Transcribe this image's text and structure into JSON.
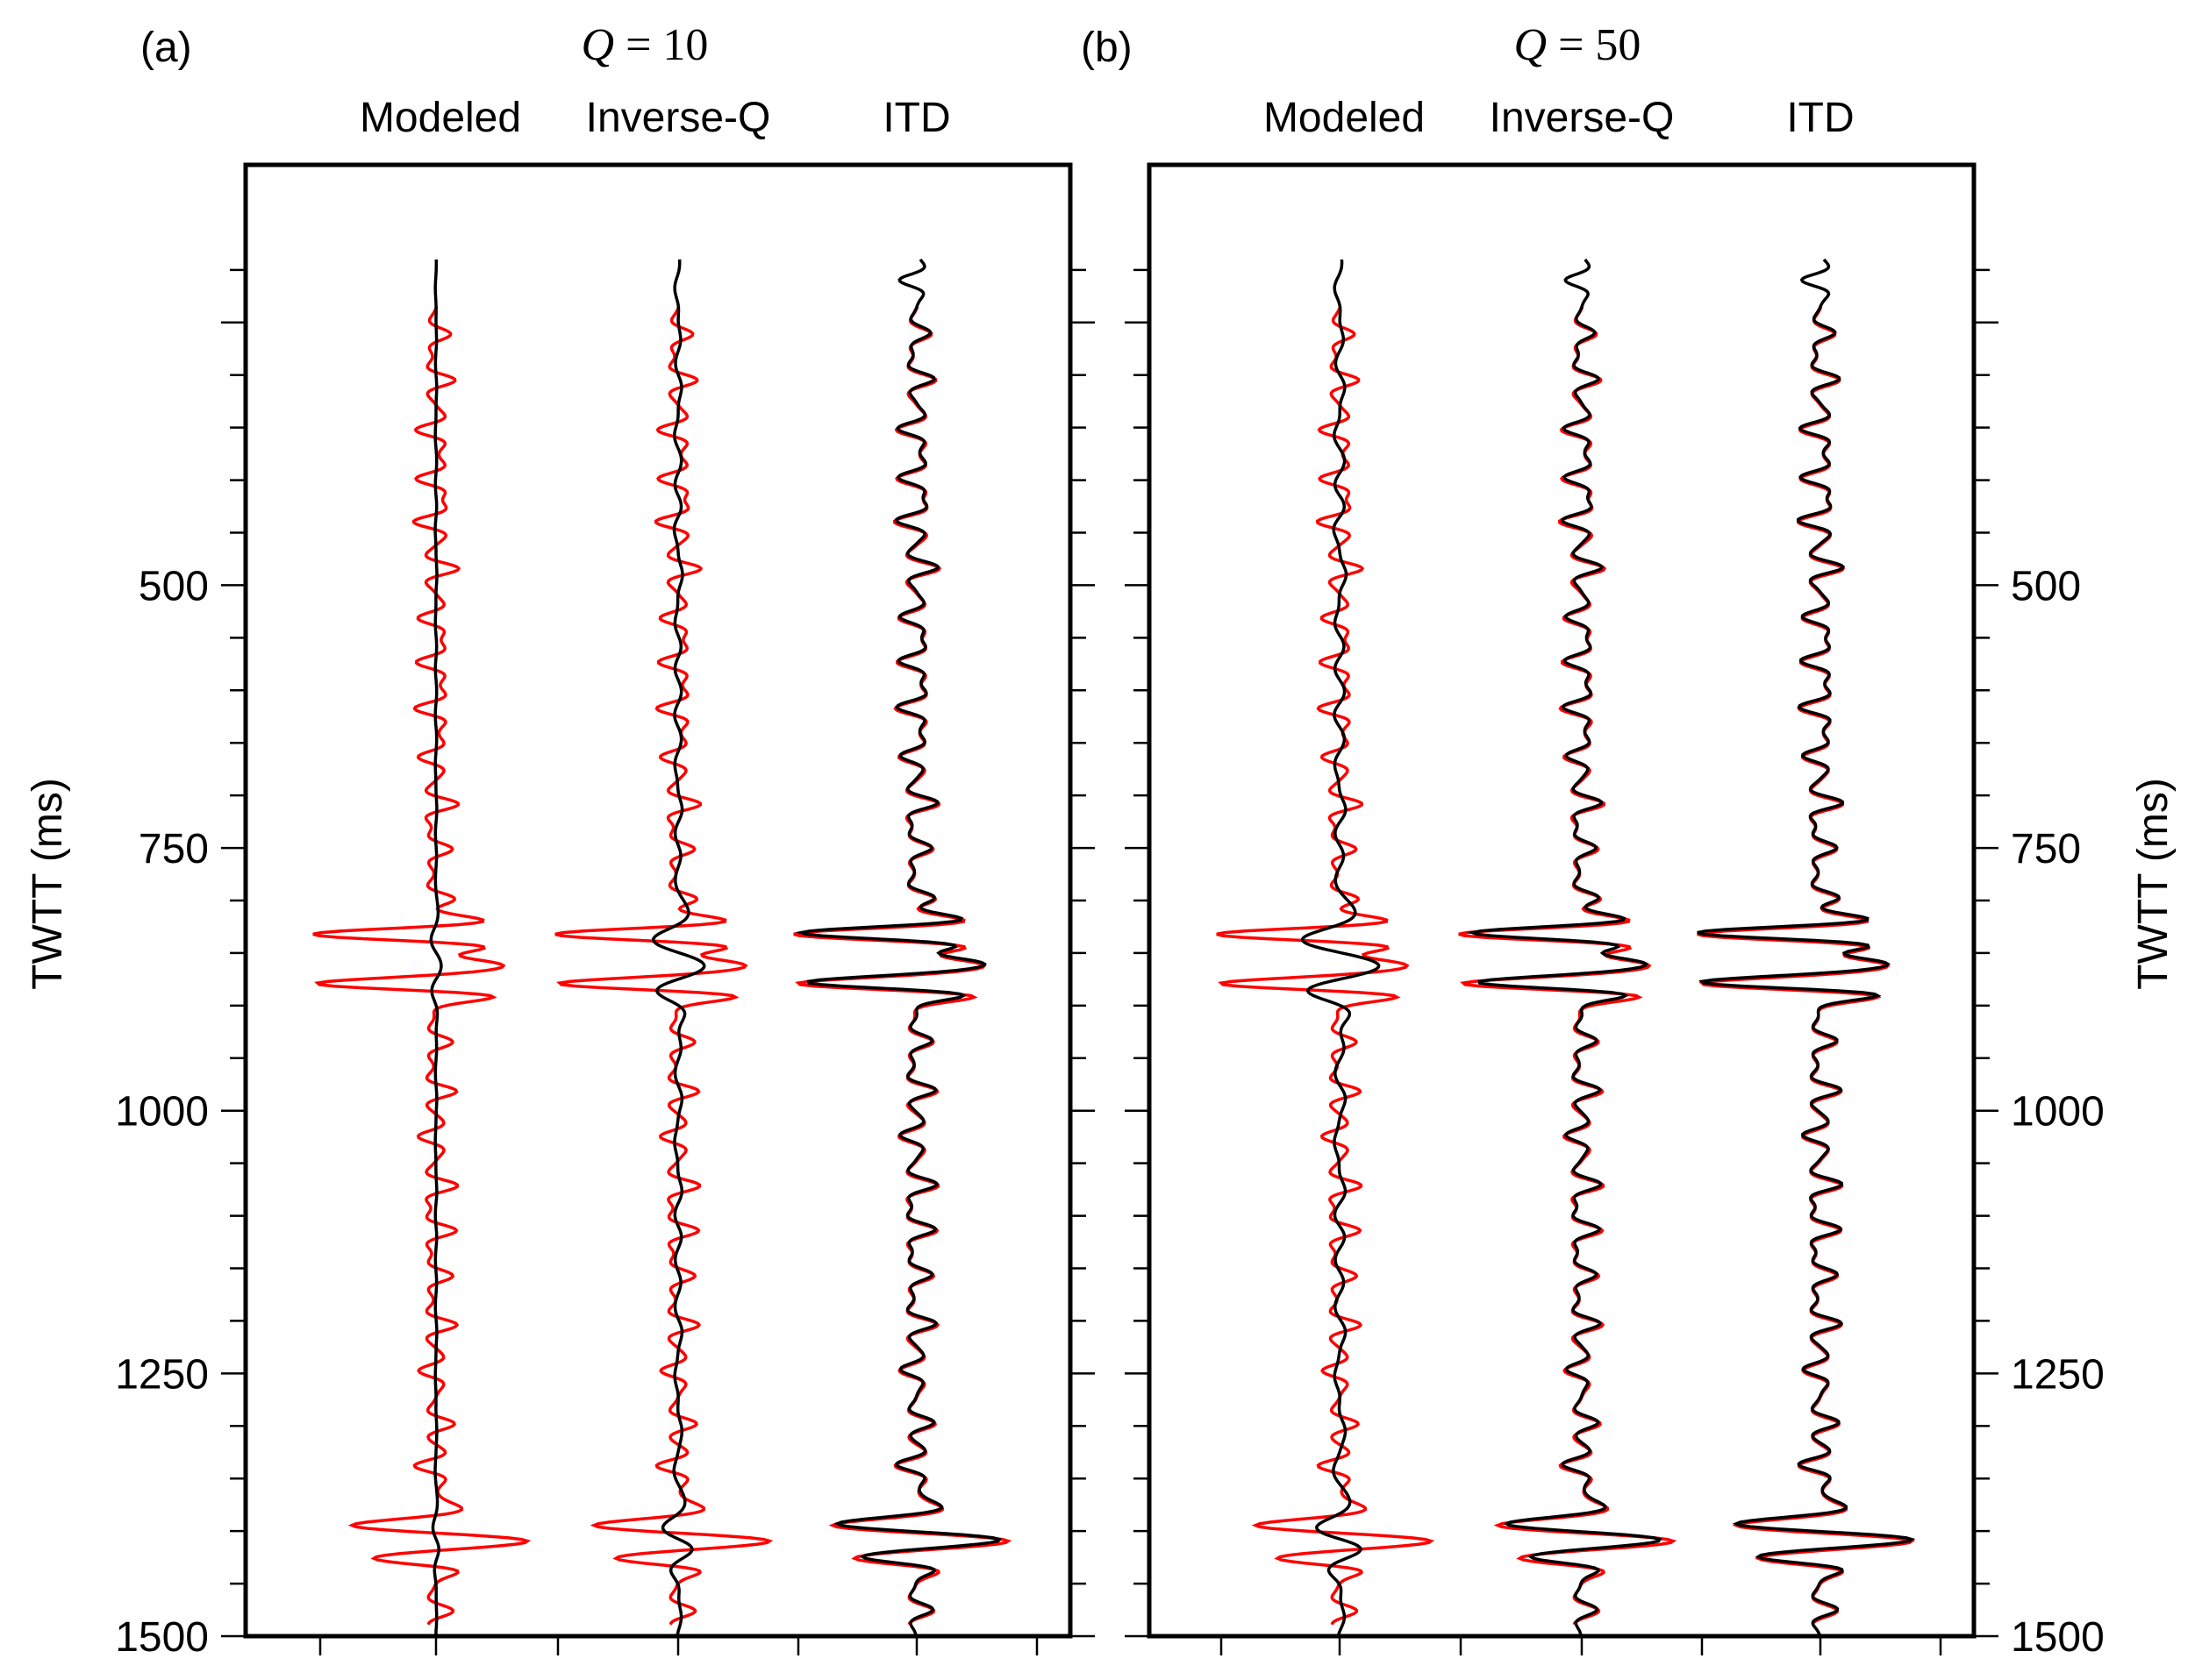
{
  "colors": {
    "modeled": "#ff0000",
    "result": "#000000",
    "frame": "#000000",
    "background": "#ffffff"
  },
  "chart_data": [
    {
      "type": "line",
      "panel_label": "(a)",
      "title_symbol": "Q",
      "title_value": "= 10",
      "ylabel": "TWTT (ms)",
      "ylim": [
        100,
        1500
      ],
      "yticks": [
        "500",
        "750",
        "1000",
        "1250",
        "1500"
      ],
      "ytick_values": [
        500,
        750,
        1000,
        1250,
        1500
      ],
      "axis_side": "left",
      "traces": [
        "Modeled",
        "Inverse-Q",
        "ITD"
      ],
      "series": [
        {
          "name": "reference (red)",
          "color": "#ff0000",
          "major_events_ms": [
            832,
            860,
            880
          ],
          "deep_events_ms": [
            1395,
            1410,
            1428
          ],
          "reflection_spacing_ms": 45
        },
        {
          "name": "Modeled (black)",
          "trace": "Modeled",
          "relative_amplitude": 0.02
        },
        {
          "name": "Inverse-Q (black)",
          "trace": "Inverse-Q",
          "relative_amplitude": 0.1
        },
        {
          "name": "ITD (black)",
          "trace": "ITD",
          "relative_amplitude": 0.9
        }
      ]
    },
    {
      "type": "line",
      "panel_label": "(b)",
      "title_symbol": "Q",
      "title_value": "= 50",
      "ylabel": "TWTT (ms)",
      "ylim": [
        100,
        1500
      ],
      "yticks": [
        "500",
        "750",
        "1000",
        "1250",
        "1500"
      ],
      "ytick_values": [
        500,
        750,
        1000,
        1250,
        1500
      ],
      "axis_side": "right",
      "traces": [
        "Modeled",
        "Inverse-Q",
        "ITD"
      ],
      "series": [
        {
          "name": "reference (red)",
          "color": "#ff0000",
          "major_events_ms": [
            832,
            860,
            880
          ],
          "deep_events_ms": [
            1395,
            1410,
            1428
          ],
          "reflection_spacing_ms": 45
        },
        {
          "name": "Modeled (black)",
          "trace": "Modeled",
          "relative_amplitude": 0.15
        },
        {
          "name": "Inverse-Q (black)",
          "trace": "Inverse-Q",
          "relative_amplitude": 0.85
        },
        {
          "name": "ITD (black)",
          "trace": "ITD",
          "relative_amplitude": 1.0
        }
      ]
    }
  ]
}
